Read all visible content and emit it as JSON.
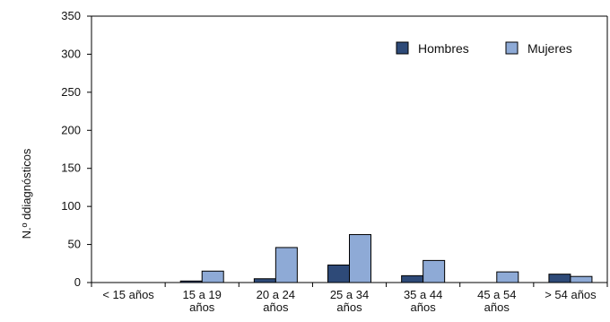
{
  "chart_data": {
    "type": "bar",
    "title": "",
    "xlabel": "",
    "ylabel": "N.º ddiagnósticos",
    "ylim": [
      0,
      350
    ],
    "yticks": [
      0,
      50,
      100,
      150,
      200,
      250,
      300,
      350
    ],
    "grid": false,
    "legend_position": "top-right",
    "categories": [
      [
        "< 15 años"
      ],
      [
        "15 a 19",
        "años"
      ],
      [
        "20 a 24",
        "años"
      ],
      [
        "25 a 34",
        "años"
      ],
      [
        "35 a 44",
        "años"
      ],
      [
        "45 a 54",
        "años"
      ],
      [
        "> 54 años"
      ]
    ],
    "series": [
      {
        "name": "Hombres",
        "color": "#2e4a78",
        "values": [
          0,
          2,
          5,
          23,
          9,
          0,
          11
        ]
      },
      {
        "name": "Mujeres",
        "color": "#8eaad6",
        "values": [
          0,
          15,
          46,
          63,
          29,
          14,
          8
        ]
      }
    ]
  }
}
